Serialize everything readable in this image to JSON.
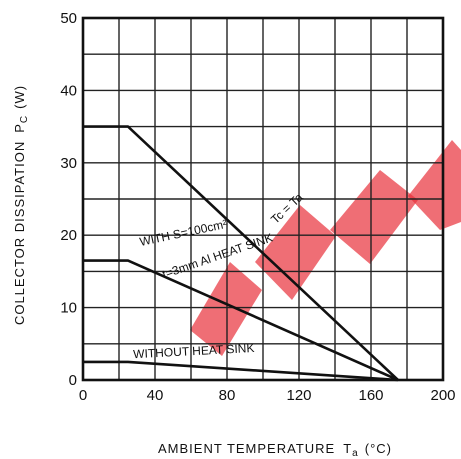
{
  "chart_data": {
    "type": "line",
    "title": "",
    "xlabel": "AMBIENT TEMPERATURE",
    "xlabel_symbol": "T",
    "xlabel_sub": "a",
    "xlabel_unit": "(°C)",
    "ylabel": "COLLECTOR DISSIPATION",
    "ylabel_symbol": "P",
    "ylabel_sub": "C",
    "ylabel_unit": "(W)",
    "xlim": [
      0,
      200
    ],
    "ylim": [
      0,
      50
    ],
    "x_ticks": [
      0,
      20,
      40,
      60,
      80,
      100,
      120,
      140,
      160,
      180,
      200
    ],
    "x_tick_labels": [
      "0",
      "40",
      "80",
      "120",
      "160",
      "200"
    ],
    "x_tick_label_values": [
      0,
      40,
      80,
      120,
      160,
      200
    ],
    "y_ticks": [
      0,
      10,
      20,
      30,
      40,
      50
    ],
    "y_tick_labels": [
      "0",
      "10",
      "20",
      "30",
      "40",
      "50"
    ],
    "grid": true,
    "series": [
      {
        "name": "Tc = Ta",
        "x": [
          0,
          25,
          175
        ],
        "y": [
          35,
          35,
          0
        ]
      },
      {
        "name": "WITH S=100cm² t=3mm Al HEAT SINK",
        "x": [
          0,
          25,
          175
        ],
        "y": [
          16.5,
          16.5,
          0
        ]
      },
      {
        "name": "WITHOUT HEAT SINK",
        "x": [
          0,
          25,
          175
        ],
        "y": [
          2.5,
          2.5,
          0
        ]
      }
    ],
    "annotations": [
      {
        "text": "Tc = Ta",
        "x": 107,
        "y": 21.5,
        "angle": -43
      },
      {
        "text": "WITH S=100cm²",
        "x": 32,
        "y": 18.5,
        "angle": -12
      },
      {
        "text": "t=3mm Al HEAT SINK",
        "x": 45,
        "y": 14,
        "angle": -19
      },
      {
        "text": "WITHOUT HEAT SINK",
        "x": 28,
        "y": 3,
        "angle": -3
      }
    ],
    "watermark_color": "#e8303a",
    "line_color": "#111111"
  }
}
